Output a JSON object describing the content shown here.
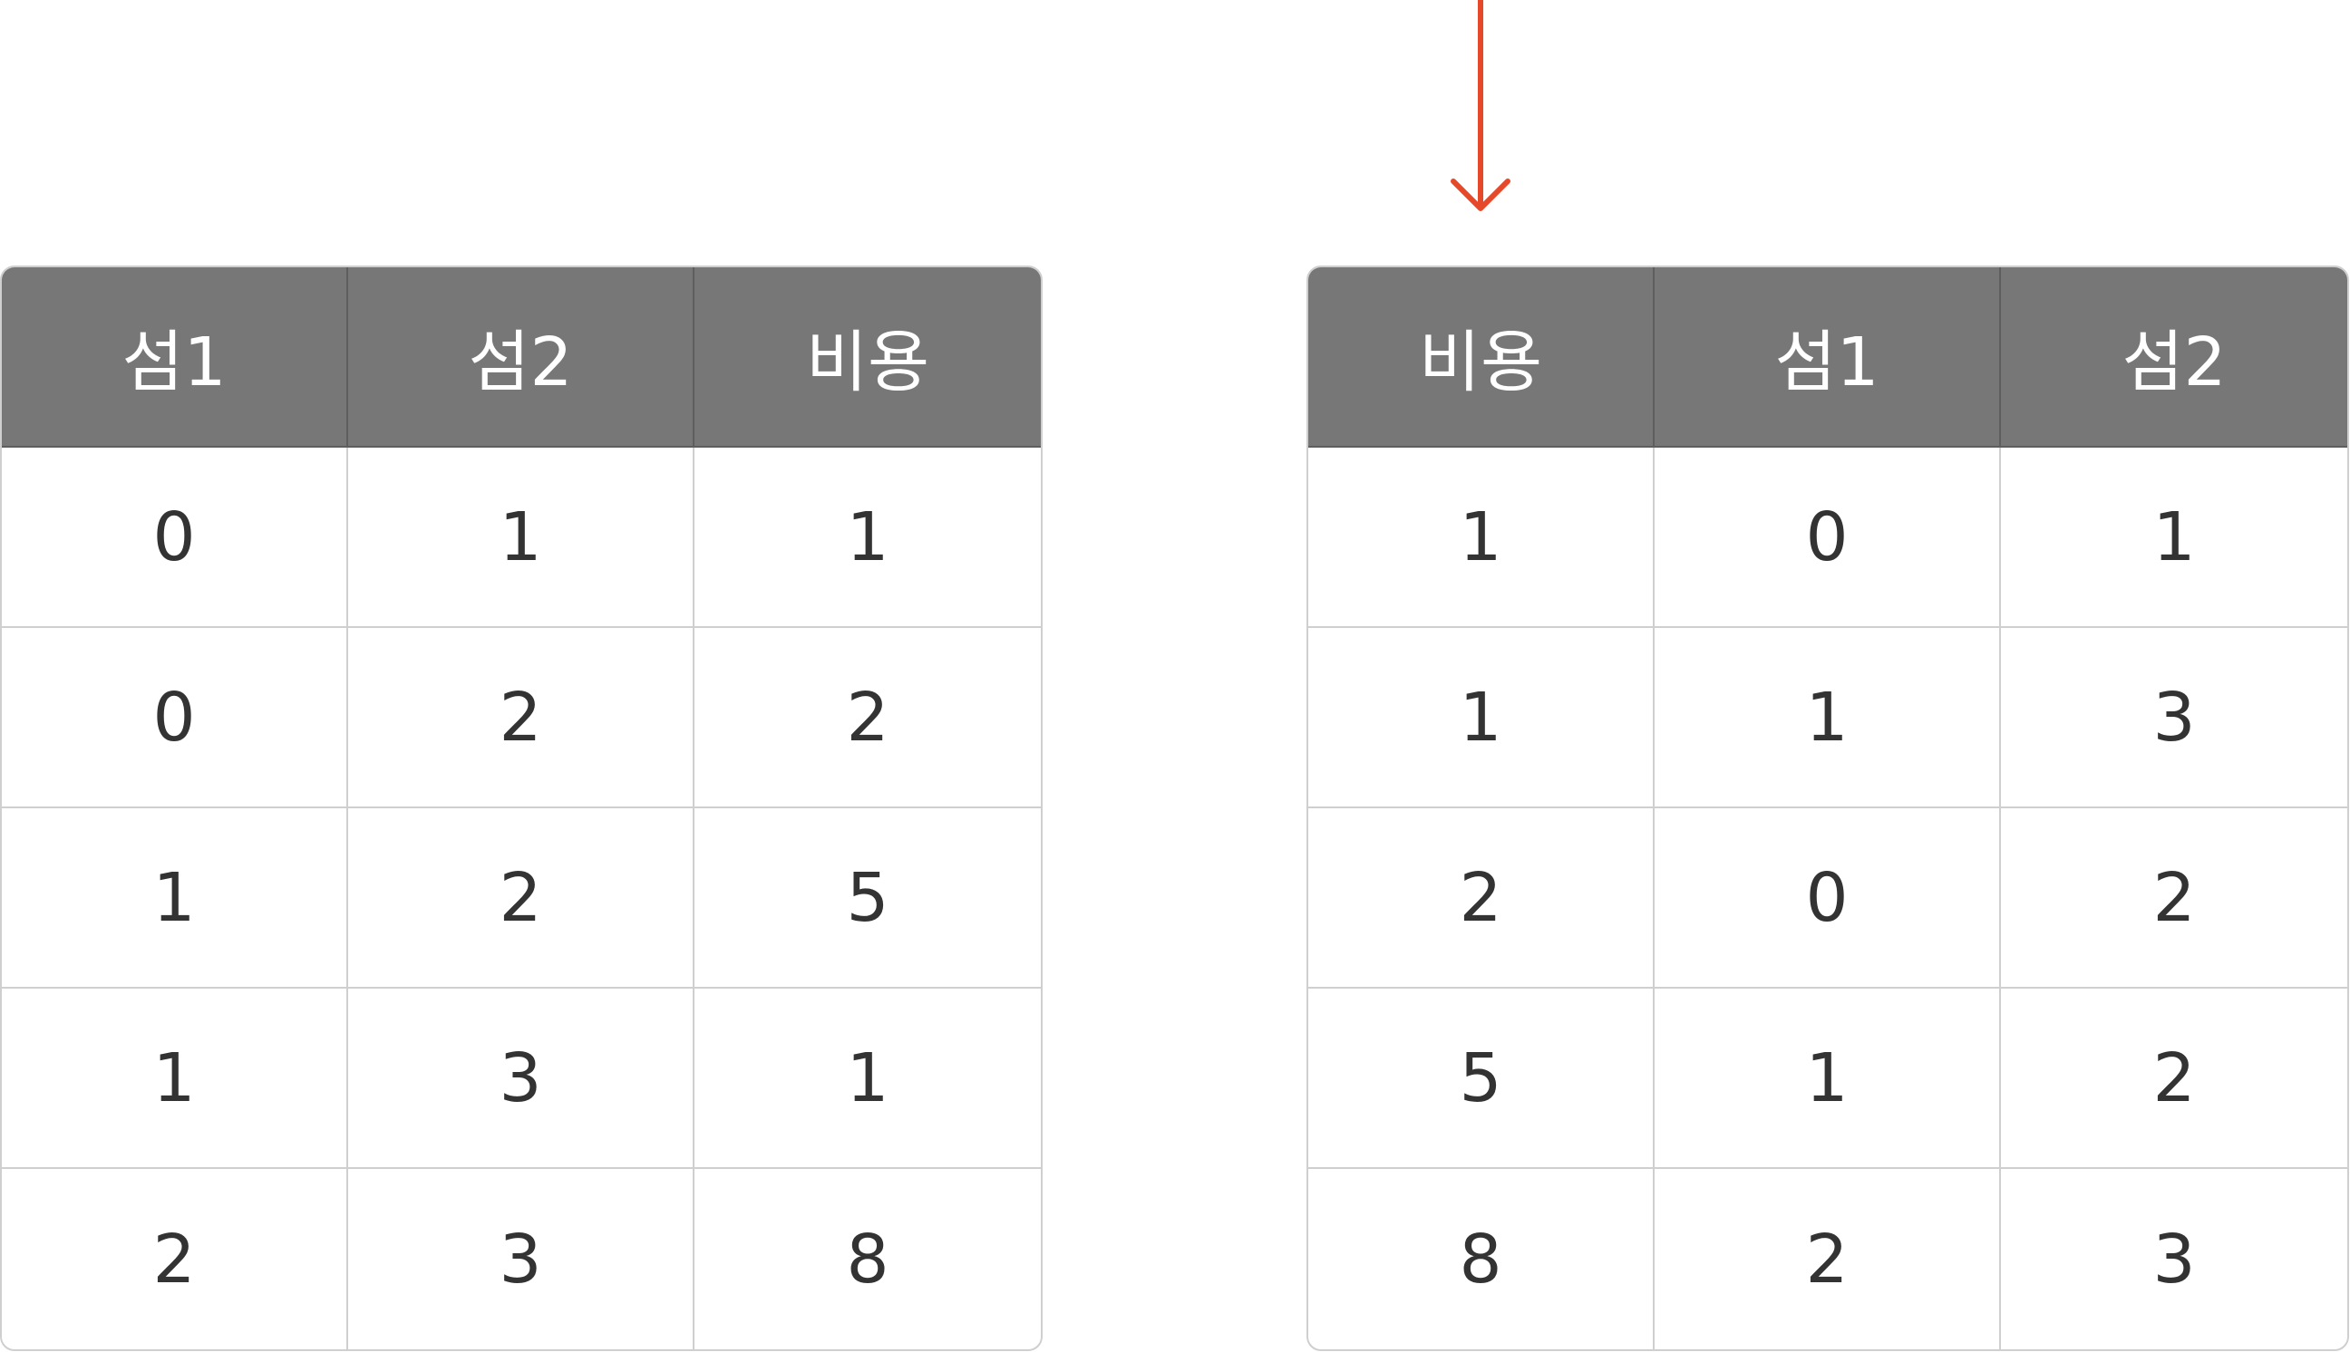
{
  "left_table": {
    "headers": [
      "섬1",
      "섬2",
      "비용"
    ],
    "rows": [
      [
        "0",
        "1",
        "1"
      ],
      [
        "0",
        "2",
        "2"
      ],
      [
        "1",
        "2",
        "5"
      ],
      [
        "1",
        "3",
        "1"
      ],
      [
        "2",
        "3",
        "8"
      ]
    ]
  },
  "right_table": {
    "headers": [
      "비용",
      "섬1",
      "섬2"
    ],
    "rows": [
      [
        "1",
        "0",
        "1"
      ],
      [
        "1",
        "1",
        "3"
      ],
      [
        "2",
        "0",
        "2"
      ],
      [
        "5",
        "1",
        "2"
      ],
      [
        "8",
        "2",
        "3"
      ]
    ]
  },
  "colors": {
    "header_bg": "#777777",
    "header_text": "#ffffff",
    "cell_text": "#333333",
    "border": "#cfcfcf",
    "arrow": "#e5492a"
  },
  "arrow_icon": "down-arrow-icon"
}
